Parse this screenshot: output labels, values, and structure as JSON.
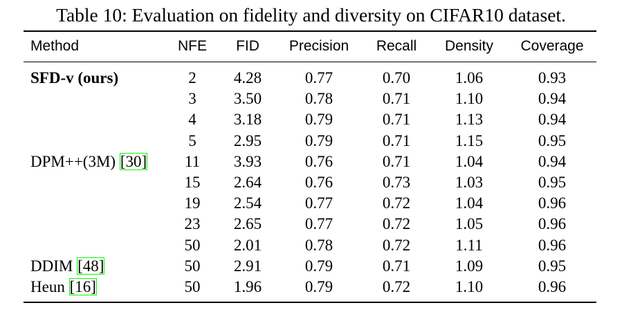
{
  "caption": "Table 10: Evaluation on fidelity and diversity on CIFAR10 dataset.",
  "columns": [
    "Method",
    "NFE",
    "FID",
    "Precision",
    "Recall",
    "Density",
    "Coverage"
  ],
  "colors": {
    "citation_box": "#00ff00",
    "text": "#000000"
  },
  "rows": [
    {
      "method": "SFD-v (ours)",
      "cite": "",
      "nfe": "2",
      "fid": "4.28",
      "precision": "0.77",
      "recall": "0.70",
      "density": "1.06",
      "coverage": "0.93"
    },
    {
      "method": "",
      "cite": "",
      "nfe": "3",
      "fid": "3.50",
      "precision": "0.78",
      "recall": "0.71",
      "density": "1.10",
      "coverage": "0.94"
    },
    {
      "method": "",
      "cite": "",
      "nfe": "4",
      "fid": "3.18",
      "precision": "0.79",
      "recall": "0.71",
      "density": "1.13",
      "coverage": "0.94"
    },
    {
      "method": "",
      "cite": "",
      "nfe": "5",
      "fid": "2.95",
      "precision": "0.79",
      "recall": "0.71",
      "density": "1.15",
      "coverage": "0.95"
    },
    {
      "method": "DPM++(3M) ",
      "cite": "[30]",
      "nfe": "11",
      "fid": "3.93",
      "precision": "0.76",
      "recall": "0.71",
      "density": "1.04",
      "coverage": "0.94"
    },
    {
      "method": "",
      "cite": "",
      "nfe": "15",
      "fid": "2.64",
      "precision": "0.76",
      "recall": "0.73",
      "density": "1.03",
      "coverage": "0.95"
    },
    {
      "method": "",
      "cite": "",
      "nfe": "19",
      "fid": "2.54",
      "precision": "0.77",
      "recall": "0.72",
      "density": "1.04",
      "coverage": "0.96"
    },
    {
      "method": "",
      "cite": "",
      "nfe": "23",
      "fid": "2.65",
      "precision": "0.77",
      "recall": "0.72",
      "density": "1.05",
      "coverage": "0.96"
    },
    {
      "method": "",
      "cite": "",
      "nfe": "50",
      "fid": "2.01",
      "precision": "0.78",
      "recall": "0.72",
      "density": "1.11",
      "coverage": "0.96"
    },
    {
      "method": "DDIM ",
      "cite": "[48]",
      "nfe": "50",
      "fid": "2.91",
      "precision": "0.79",
      "recall": "0.71",
      "density": "1.09",
      "coverage": "0.95"
    },
    {
      "method": "Heun ",
      "cite": "[16]",
      "nfe": "50",
      "fid": "1.96",
      "precision": "0.79",
      "recall": "0.72",
      "density": "1.10",
      "coverage": "0.96"
    }
  ]
}
